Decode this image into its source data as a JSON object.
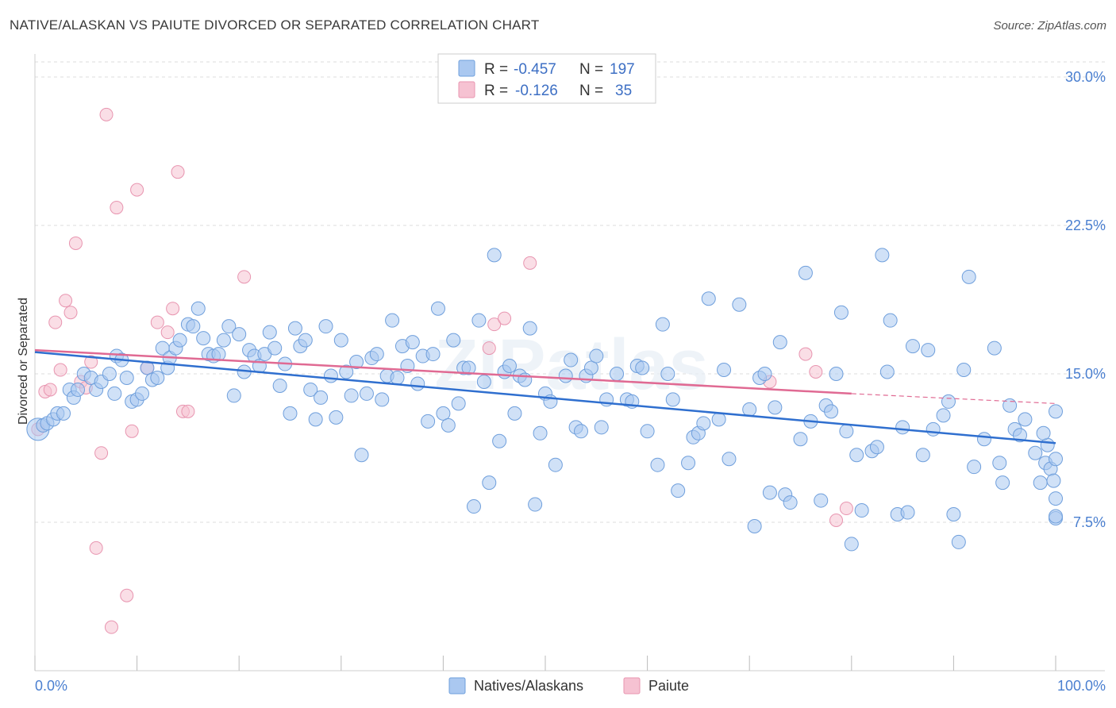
{
  "title": "NATIVE/ALASKAN VS PAIUTE DIVORCED OR SEPARATED CORRELATION CHART",
  "source": "Source: ZipAtlas.com",
  "watermark": "ZIPatlas",
  "colors": {
    "blue_fill": "#aac8f0",
    "blue_stroke": "#6f9fdc",
    "blue_line": "#2f6fcf",
    "pink_fill": "#f6c2d2",
    "pink_stroke": "#e895b0",
    "pink_line": "#e06a93",
    "tick_text": "#4a7fd0",
    "grid": "#dddddd"
  },
  "legend": {
    "rows": [
      {
        "r_label": "R =",
        "r_value": "-0.457",
        "n_label": "N =",
        "n_value": "197",
        "swatch": "blue"
      },
      {
        "r_label": "R =",
        "r_value": "-0.126",
        "n_label": "N =",
        "n_value": "35",
        "swatch": "pink"
      }
    ]
  },
  "bottom_legend": [
    {
      "label": "Natives/Alaskans",
      "swatch": "blue"
    },
    {
      "label": "Paiute",
      "swatch": "pink"
    }
  ],
  "chart_data": {
    "type": "scatter",
    "title": "NATIVE/ALASKAN VS PAIUTE DIVORCED OR SEPARATED CORRELATION CHART",
    "xlabel": "",
    "ylabel": "Divorced or Separated",
    "xlim": [
      0,
      100
    ],
    "ylim": [
      0,
      31
    ],
    "x_tick_labels": [
      "0.0%",
      "100.0%"
    ],
    "y_ticks": [
      7.5,
      15.0,
      22.5,
      30.0
    ],
    "y_tick_labels": [
      "7.5%",
      "15.0%",
      "22.5%",
      "30.0%"
    ],
    "grid": true,
    "legend_position": "top-center",
    "series": [
      {
        "name": "Natives/Alaskans",
        "color": "#aac8f0",
        "trend": {
          "x": [
            0,
            100
          ],
          "y": [
            16.1,
            11.5
          ]
        },
        "points": [
          [
            0.3,
            12.2
          ],
          [
            0.8,
            12.4
          ],
          [
            1.2,
            12.5
          ],
          [
            1.8,
            12.7
          ],
          [
            2.2,
            13.0
          ],
          [
            2.8,
            13.0
          ],
          [
            3.4,
            14.2
          ],
          [
            3.8,
            13.8
          ],
          [
            4.2,
            14.2
          ],
          [
            4.8,
            15.0
          ],
          [
            5.5,
            14.8
          ],
          [
            6.0,
            14.2
          ],
          [
            6.5,
            14.6
          ],
          [
            7.3,
            15.0
          ],
          [
            7.8,
            14.0
          ],
          [
            8.0,
            15.9
          ],
          [
            8.5,
            15.7
          ],
          [
            9.0,
            14.8
          ],
          [
            9.5,
            13.6
          ],
          [
            10.0,
            13.7
          ],
          [
            10.5,
            14.0
          ],
          [
            11.0,
            15.3
          ],
          [
            11.5,
            14.7
          ],
          [
            12.0,
            14.8
          ],
          [
            12.5,
            16.3
          ],
          [
            13.0,
            15.3
          ],
          [
            13.2,
            15.8
          ],
          [
            13.8,
            16.3
          ],
          [
            14.2,
            16.7
          ],
          [
            15.0,
            17.5
          ],
          [
            15.5,
            17.4
          ],
          [
            16.0,
            18.3
          ],
          [
            16.5,
            16.8
          ],
          [
            17.0,
            16.0
          ],
          [
            17.5,
            15.9
          ],
          [
            18.0,
            16.0
          ],
          [
            18.5,
            16.7
          ],
          [
            19.0,
            17.4
          ],
          [
            19.5,
            13.9
          ],
          [
            20.0,
            17.0
          ],
          [
            20.5,
            15.1
          ],
          [
            21.0,
            16.2
          ],
          [
            21.5,
            15.9
          ],
          [
            22.0,
            15.4
          ],
          [
            22.5,
            16.0
          ],
          [
            23.0,
            17.1
          ],
          [
            23.5,
            16.3
          ],
          [
            24.0,
            14.4
          ],
          [
            24.5,
            15.5
          ],
          [
            25.0,
            13.0
          ],
          [
            25.5,
            17.3
          ],
          [
            26.0,
            16.4
          ],
          [
            26.5,
            16.7
          ],
          [
            27.0,
            14.2
          ],
          [
            27.5,
            12.7
          ],
          [
            28.0,
            13.8
          ],
          [
            28.5,
            17.4
          ],
          [
            29.0,
            14.9
          ],
          [
            29.5,
            12.8
          ],
          [
            30.0,
            16.7
          ],
          [
            30.5,
            15.1
          ],
          [
            31.0,
            13.9
          ],
          [
            31.5,
            15.6
          ],
          [
            32.0,
            10.9
          ],
          [
            32.5,
            14.0
          ],
          [
            33.0,
            15.8
          ],
          [
            33.5,
            16.0
          ],
          [
            34.0,
            13.7
          ],
          [
            34.5,
            14.9
          ],
          [
            35.0,
            17.7
          ],
          [
            35.5,
            14.8
          ],
          [
            36.0,
            16.4
          ],
          [
            36.5,
            15.4
          ],
          [
            37.0,
            16.6
          ],
          [
            37.5,
            14.5
          ],
          [
            38.0,
            15.9
          ],
          [
            38.5,
            12.6
          ],
          [
            39.0,
            16.0
          ],
          [
            39.5,
            18.3
          ],
          [
            40.0,
            13.0
          ],
          [
            40.5,
            12.4
          ],
          [
            41.0,
            16.7
          ],
          [
            41.5,
            13.5
          ],
          [
            42.0,
            15.3
          ],
          [
            42.5,
            15.3
          ],
          [
            43.0,
            8.3
          ],
          [
            43.5,
            17.7
          ],
          [
            44.0,
            14.6
          ],
          [
            44.5,
            9.5
          ],
          [
            45.0,
            21.0
          ],
          [
            45.5,
            11.6
          ],
          [
            46.0,
            15.1
          ],
          [
            46.5,
            15.4
          ],
          [
            47.0,
            13.0
          ],
          [
            47.5,
            14.9
          ],
          [
            48.0,
            14.7
          ],
          [
            48.5,
            17.3
          ],
          [
            49.0,
            8.4
          ],
          [
            49.5,
            12.0
          ],
          [
            50.0,
            14.0
          ],
          [
            50.5,
            13.6
          ],
          [
            51.0,
            10.4
          ],
          [
            52.0,
            14.9
          ],
          [
            52.5,
            15.7
          ],
          [
            53.0,
            12.3
          ],
          [
            53.5,
            12.1
          ],
          [
            54.0,
            14.9
          ],
          [
            54.5,
            15.3
          ],
          [
            55.0,
            15.9
          ],
          [
            55.5,
            12.3
          ],
          [
            56.0,
            13.7
          ],
          [
            57.0,
            15.0
          ],
          [
            58.0,
            13.7
          ],
          [
            58.5,
            13.6
          ],
          [
            59.0,
            15.4
          ],
          [
            59.5,
            15.3
          ],
          [
            60.0,
            12.1
          ],
          [
            61.0,
            10.4
          ],
          [
            61.5,
            17.5
          ],
          [
            62.0,
            15.0
          ],
          [
            62.5,
            13.7
          ],
          [
            63.0,
            9.1
          ],
          [
            64.0,
            10.5
          ],
          [
            64.5,
            11.8
          ],
          [
            65.0,
            12.0
          ],
          [
            65.5,
            12.5
          ],
          [
            66.0,
            18.8
          ],
          [
            67.0,
            12.7
          ],
          [
            67.5,
            15.2
          ],
          [
            68.0,
            10.7
          ],
          [
            69.0,
            18.5
          ],
          [
            70.0,
            13.2
          ],
          [
            70.5,
            7.3
          ],
          [
            71.0,
            14.8
          ],
          [
            71.5,
            15.0
          ],
          [
            72.0,
            9.0
          ],
          [
            72.5,
            13.3
          ],
          [
            73.0,
            16.6
          ],
          [
            73.5,
            8.9
          ],
          [
            74.0,
            8.5
          ],
          [
            75.0,
            11.7
          ],
          [
            75.5,
            20.1
          ],
          [
            76.0,
            12.6
          ],
          [
            77.0,
            8.6
          ],
          [
            77.5,
            13.4
          ],
          [
            78.0,
            13.1
          ],
          [
            78.5,
            15.0
          ],
          [
            79.0,
            18.1
          ],
          [
            79.5,
            12.1
          ],
          [
            80.0,
            6.4
          ],
          [
            80.5,
            10.9
          ],
          [
            81.0,
            8.1
          ],
          [
            82.0,
            11.1
          ],
          [
            82.5,
            11.3
          ],
          [
            83.0,
            21.0
          ],
          [
            83.5,
            15.1
          ],
          [
            83.8,
            17.7
          ],
          [
            84.5,
            7.9
          ],
          [
            85.0,
            12.3
          ],
          [
            85.5,
            8.0
          ],
          [
            86.0,
            16.4
          ],
          [
            87.0,
            10.9
          ],
          [
            87.5,
            16.2
          ],
          [
            88.0,
            12.2
          ],
          [
            89.0,
            12.9
          ],
          [
            89.5,
            13.6
          ],
          [
            90.0,
            7.9
          ],
          [
            90.5,
            6.5
          ],
          [
            91.0,
            15.2
          ],
          [
            91.5,
            19.9
          ],
          [
            92.0,
            10.3
          ],
          [
            93.0,
            11.7
          ],
          [
            94.0,
            16.3
          ],
          [
            94.5,
            10.5
          ],
          [
            94.8,
            9.5
          ],
          [
            95.5,
            13.4
          ],
          [
            96.0,
            12.2
          ],
          [
            96.5,
            11.9
          ],
          [
            97.0,
            12.7
          ],
          [
            98.0,
            11.0
          ],
          [
            98.5,
            9.5
          ],
          [
            99.0,
            10.5
          ],
          [
            99.5,
            10.2
          ],
          [
            100.0,
            7.7
          ],
          [
            99.8,
            9.6
          ],
          [
            100.0,
            8.7
          ],
          [
            99.2,
            11.4
          ],
          [
            98.8,
            12.0
          ],
          [
            100.0,
            10.7
          ],
          [
            100.0,
            13.1
          ],
          [
            100.0,
            7.8
          ]
        ]
      },
      {
        "name": "Paiute",
        "color": "#f6c2d2",
        "trend": {
          "x": [
            0,
            80
          ],
          "y": [
            16.2,
            14.0
          ]
        },
        "trend_dashed": {
          "x": [
            80,
            100
          ],
          "y": [
            14.0,
            13.5
          ]
        },
        "points": [
          [
            0.3,
            12.2
          ],
          [
            1.0,
            14.1
          ],
          [
            1.5,
            14.2
          ],
          [
            2.0,
            17.6
          ],
          [
            2.5,
            15.2
          ],
          [
            3.0,
            18.7
          ],
          [
            3.5,
            18.1
          ],
          [
            4.0,
            21.6
          ],
          [
            4.5,
            14.6
          ],
          [
            5.0,
            14.3
          ],
          [
            5.5,
            15.6
          ],
          [
            6.0,
            6.2
          ],
          [
            6.5,
            11.0
          ],
          [
            7.0,
            28.1
          ],
          [
            7.5,
            2.2
          ],
          [
            8.0,
            23.4
          ],
          [
            9.0,
            3.8
          ],
          [
            9.5,
            12.1
          ],
          [
            10.0,
            24.3
          ],
          [
            11.0,
            15.3
          ],
          [
            12.0,
            17.6
          ],
          [
            13.0,
            17.1
          ],
          [
            13.5,
            18.3
          ],
          [
            14.0,
            25.2
          ],
          [
            14.5,
            13.1
          ],
          [
            15.0,
            13.1
          ],
          [
            20.5,
            19.9
          ],
          [
            44.5,
            16.3
          ],
          [
            45.0,
            17.5
          ],
          [
            46.0,
            17.8
          ],
          [
            48.5,
            20.6
          ],
          [
            72.0,
            14.6
          ],
          [
            75.5,
            16.0
          ],
          [
            76.5,
            15.1
          ],
          [
            78.5,
            7.6
          ],
          [
            79.5,
            8.2
          ]
        ]
      }
    ]
  }
}
